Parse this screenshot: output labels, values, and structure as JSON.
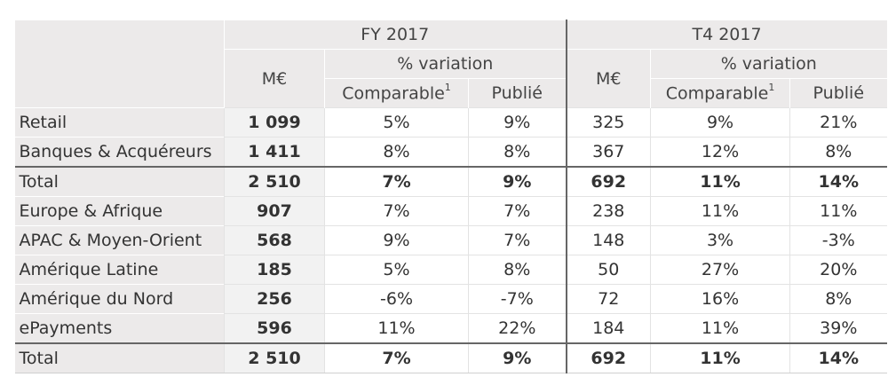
{
  "header": {
    "fy_label": "FY 2017",
    "q4_label": "T4 2017",
    "me_label": "M€",
    "variation_label": "% variation",
    "comparable_label": "Comparable",
    "comparable_note": "1",
    "published_label": "Publié"
  },
  "rows": [
    {
      "label": "Retail",
      "fy_me": "1 099",
      "fy_comp": "5%",
      "fy_pub": "9%",
      "q4_me": "325",
      "q4_comp": "9%",
      "q4_pub": "21%"
    },
    {
      "label": "Banques & Acquéreurs",
      "fy_me": "1 411",
      "fy_comp": "8%",
      "fy_pub": "8%",
      "q4_me": "367",
      "q4_comp": "12%",
      "q4_pub": "8%"
    },
    {
      "label": "Total",
      "fy_me": "2 510",
      "fy_comp": "7%",
      "fy_pub": "9%",
      "q4_me": "692",
      "q4_comp": "11%",
      "q4_pub": "14%"
    },
    {
      "label": "Europe & Afrique",
      "fy_me": "907",
      "fy_comp": "7%",
      "fy_pub": "7%",
      "q4_me": "238",
      "q4_comp": "11%",
      "q4_pub": "11%"
    },
    {
      "label": "APAC & Moyen-Orient",
      "fy_me": "568",
      "fy_comp": "9%",
      "fy_pub": "7%",
      "q4_me": "148",
      "q4_comp": "3%",
      "q4_pub": "-3%"
    },
    {
      "label": "Amérique Latine",
      "fy_me": "185",
      "fy_comp": "5%",
      "fy_pub": "8%",
      "q4_me": "50",
      "q4_comp": "27%",
      "q4_pub": "20%"
    },
    {
      "label": "Amérique du Nord",
      "fy_me": "256",
      "fy_comp": "-6%",
      "fy_pub": "-7%",
      "q4_me": "72",
      "q4_comp": "16%",
      "q4_pub": "8%"
    },
    {
      "label": "ePayments",
      "fy_me": "596",
      "fy_comp": "11%",
      "fy_pub": "22%",
      "q4_me": "184",
      "q4_comp": "11%",
      "q4_pub": "39%"
    },
    {
      "label": "Total",
      "fy_me": "2 510",
      "fy_comp": "7%",
      "fy_pub": "9%",
      "q4_me": "692",
      "q4_comp": "11%",
      "q4_pub": "14%"
    }
  ]
}
